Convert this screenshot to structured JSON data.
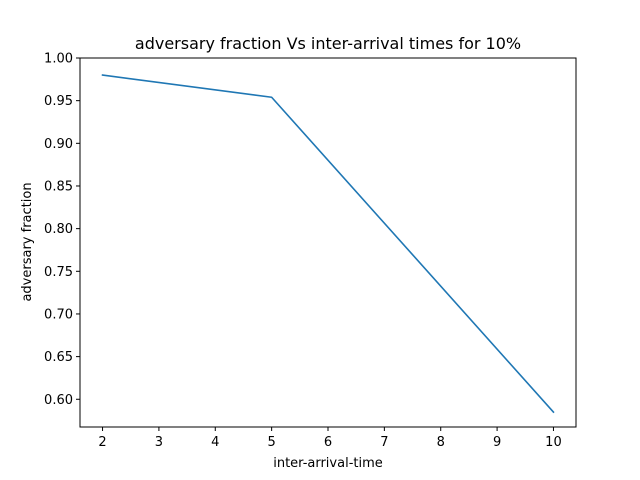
{
  "chart_data": {
    "type": "line",
    "title": "adversary fraction Vs inter-arrival times for 10%",
    "xlabel": "inter-arrival-time",
    "ylabel": "adversary fraction",
    "xlim": [
      1.6,
      10.4
    ],
    "ylim": [
      0.5675,
      1.0
    ],
    "xticks": [
      2,
      3,
      4,
      5,
      6,
      7,
      8,
      9,
      10
    ],
    "xtick_labels": [
      "2",
      "3",
      "4",
      "5",
      "6",
      "7",
      "8",
      "9",
      "10"
    ],
    "yticks": [
      0.6,
      0.65,
      0.7,
      0.75,
      0.8,
      0.85,
      0.9,
      0.95,
      1.0
    ],
    "ytick_labels": [
      "0.60",
      "0.65",
      "0.70",
      "0.75",
      "0.80",
      "0.85",
      "0.90",
      "0.95",
      "1.00"
    ],
    "grid": false,
    "series": [
      {
        "color": "#1f77b4",
        "x": [
          2,
          5,
          10
        ],
        "y": [
          0.98,
          0.954,
          0.585
        ]
      }
    ]
  }
}
